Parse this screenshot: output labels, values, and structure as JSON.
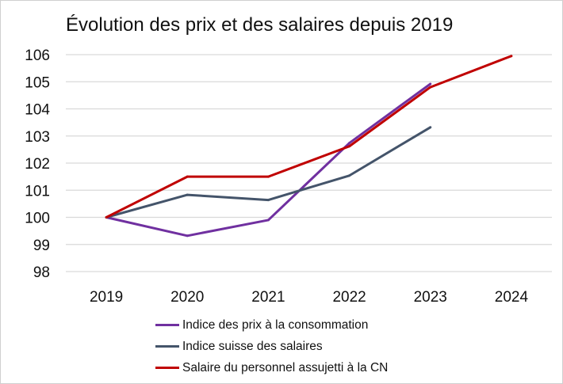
{
  "chart_data": {
    "type": "line",
    "title": "Évolution des prix et des salaires depuis 2019",
    "categories": [
      "2019",
      "2020",
      "2021",
      "2022",
      "2023",
      "2024"
    ],
    "ylim": [
      98,
      106
    ],
    "yticks": [
      "98",
      "99",
      "100",
      "101",
      "102",
      "103",
      "104",
      "105",
      "106"
    ],
    "grid": true,
    "legend_position": "bottom",
    "series": [
      {
        "name": "Indice des prix à la consommation",
        "color": "#7030a0",
        "values": [
          100,
          99.32,
          99.9,
          102.74,
          104.92,
          null
        ]
      },
      {
        "name": "Indice suisse des salaires",
        "color": "#44546a",
        "values": [
          100,
          100.83,
          100.64,
          101.54,
          103.32,
          null
        ]
      },
      {
        "name": "Salaire du personnel assujetti à la CN",
        "color": "#c00000",
        "values": [
          100,
          101.5,
          101.5,
          102.62,
          104.8,
          105.95
        ]
      }
    ]
  }
}
